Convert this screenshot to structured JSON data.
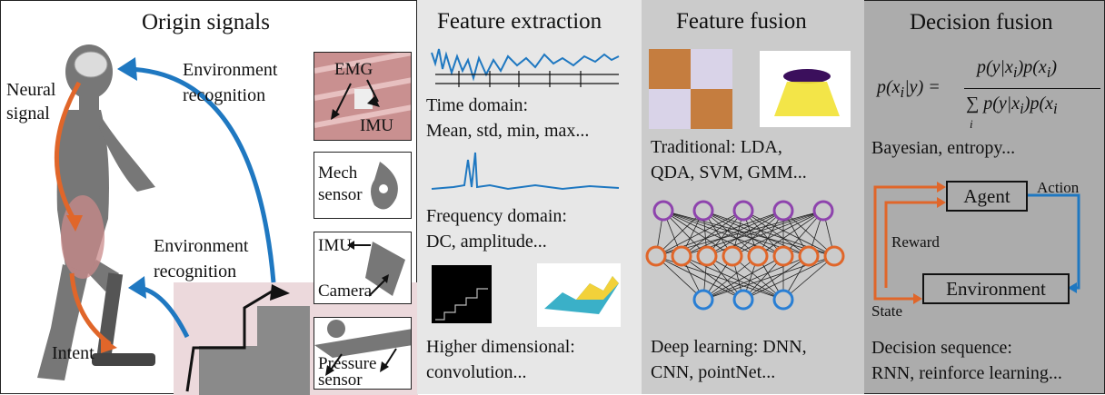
{
  "panels": {
    "origin": {
      "title": "Origin signals",
      "neural_signal": [
        "Neural",
        "signal"
      ],
      "env_recog_top": [
        "Environment",
        "recognition"
      ],
      "env_recog_mid": [
        "Environment",
        "recognition"
      ],
      "intent": "Intent",
      "sensors": {
        "emg": "EMG",
        "imu": "IMU",
        "mech": [
          "Mech",
          "sensor"
        ],
        "imu2": "IMU",
        "camera": "Camera",
        "pressure": [
          "Pressure",
          "sensor"
        ]
      }
    },
    "extraction": {
      "title": "Feature extraction",
      "time": [
        "Time domain:",
        "Mean, std, min, max..."
      ],
      "freq": [
        "Frequency domain:",
        "DC, amplitude..."
      ],
      "higher": [
        "Higher dimensional:",
        "convolution..."
      ]
    },
    "fusion": {
      "title": "Feature fusion",
      "traditional": [
        "Traditional:  LDA,",
        "QDA, SVM, GMM..."
      ],
      "deep": [
        "Deep learning:  DNN,",
        "CNN, pointNet..."
      ]
    },
    "decision": {
      "title": "Decision fusion",
      "bayes_note": "Bayesian, entropy...",
      "agent": "Agent",
      "environment": "Environment",
      "action": "Action",
      "reward": "Reward",
      "state": "State",
      "sequence": [
        "Decision sequence:",
        "RNN, reinforce learning..."
      ]
    }
  },
  "colors": {
    "orange": "#e0662a",
    "blue": "#1f78c1",
    "purple": "#8e44ad",
    "nn_blue": "#2a7fd4"
  }
}
